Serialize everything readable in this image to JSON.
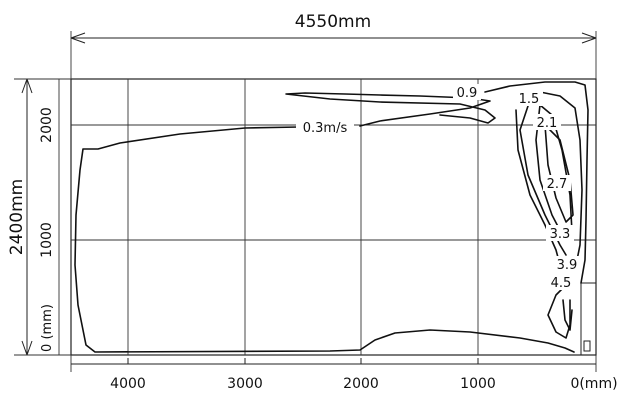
{
  "diagram": {
    "width_dimension": "4550mm",
    "height_dimension": "2400mm",
    "x_ticks": [
      {
        "value": 4000,
        "label": "4000"
      },
      {
        "value": 3000,
        "label": "3000"
      },
      {
        "value": 2000,
        "label": "2000"
      },
      {
        "value": 1000,
        "label": "1000"
      },
      {
        "value": 0,
        "label": "0(mm)"
      }
    ],
    "y_ticks": [
      {
        "value": 2000,
        "label": "2000"
      },
      {
        "value": 1000,
        "label": "1000"
      },
      {
        "value": 0,
        "label": "0 (mm)"
      }
    ],
    "contour_labels": [
      {
        "id": "v03",
        "text": "0.3m/s"
      },
      {
        "id": "v09",
        "text": "0.9"
      },
      {
        "id": "v15",
        "text": "1.5"
      },
      {
        "id": "v21",
        "text": "2.1"
      },
      {
        "id": "v27",
        "text": "2.7"
      },
      {
        "id": "v33",
        "text": "3.3"
      },
      {
        "id": "v39",
        "text": "3.9"
      },
      {
        "id": "v45",
        "text": "4.5"
      }
    ],
    "colors": {
      "line": "#111111",
      "grid": "#222222",
      "background": "#ffffff"
    }
  }
}
